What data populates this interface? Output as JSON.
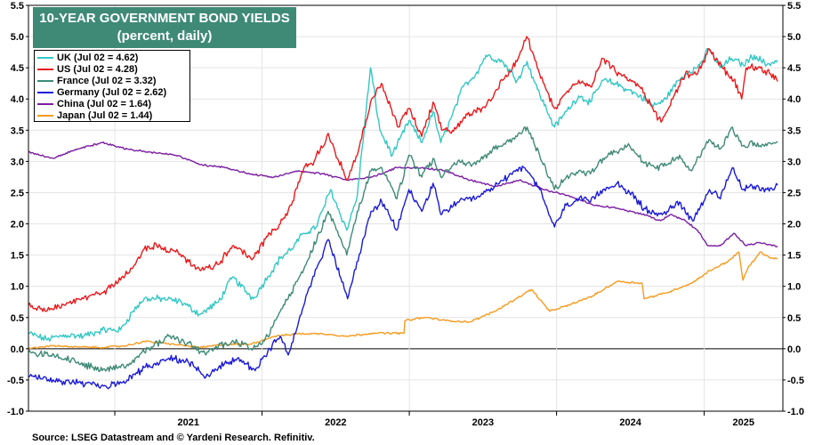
{
  "title_line1": "10-YEAR GOVERNMENT BOND YIELDS",
  "title_line2": "(percent, daily)",
  "source": "Source: LSEG Datastream and © Yardeni Research. Refinitiv.",
  "chart_data": {
    "type": "line",
    "title": "10-YEAR GOVERNMENT BOND YIELDS",
    "subtitle": "(percent, daily)",
    "xlabel": "",
    "ylabel": "",
    "ylim": [
      -1.0,
      5.5
    ],
    "yticks": [
      "5.5",
      "5.0",
      "4.5",
      "4.0",
      "3.5",
      "3.0",
      "2.5",
      "2.0",
      "1.5",
      "1.0",
      "0.5",
      "0.0",
      "-0.5",
      "-1.0"
    ],
    "x_ticks": [
      "2021",
      "2022",
      "2023",
      "2024",
      "2025"
    ],
    "x_range": [
      "2020-06-01",
      "2025-07-15"
    ],
    "grid": true,
    "legend": "top-left",
    "series": [
      {
        "name": "UK (Jul 02 = 4.62)",
        "color": "#33c7c4",
        "x": [
          "2020-06-01",
          "2020-07-15",
          "2020-09-01",
          "2020-10-15",
          "2020-12-01",
          "2021-01-15",
          "2021-02-15",
          "2021-03-15",
          "2021-05-01",
          "2021-06-15",
          "2021-08-01",
          "2021-09-15",
          "2021-10-20",
          "2021-12-10",
          "2022-01-15",
          "2022-02-15",
          "2022-03-15",
          "2022-04-15",
          "2022-05-15",
          "2022-06-20",
          "2022-07-30",
          "2022-08-25",
          "2022-09-27",
          "2022-10-20",
          "2022-11-20",
          "2022-12-31",
          "2023-02-01",
          "2023-03-01",
          "2023-03-20",
          "2023-04-15",
          "2023-05-15",
          "2023-06-15",
          "2023-07-10",
          "2023-08-20",
          "2023-09-25",
          "2023-10-20",
          "2023-11-15",
          "2023-12-27",
          "2024-01-25",
          "2024-02-25",
          "2024-03-25",
          "2024-04-25",
          "2024-05-25",
          "2024-06-25",
          "2024-07-25",
          "2024-08-25",
          "2024-09-20",
          "2024-10-30",
          "2024-11-25",
          "2024-12-15",
          "2025-01-13",
          "2025-02-10",
          "2025-03-10",
          "2025-04-07",
          "2025-05-05",
          "2025-06-05",
          "2025-07-02"
        ],
        "values": [
          0.25,
          0.15,
          0.22,
          0.2,
          0.3,
          0.3,
          0.6,
          0.8,
          0.8,
          0.75,
          0.55,
          0.75,
          1.15,
          0.8,
          1.15,
          1.45,
          1.6,
          1.85,
          1.95,
          2.55,
          1.9,
          2.45,
          4.5,
          3.5,
          3.1,
          3.65,
          3.3,
          3.8,
          3.3,
          3.7,
          4.2,
          4.4,
          4.7,
          4.6,
          4.3,
          4.6,
          4.15,
          3.55,
          3.8,
          4.05,
          3.95,
          4.3,
          4.25,
          4.15,
          4.05,
          3.9,
          3.95,
          4.3,
          4.45,
          4.5,
          4.8,
          4.5,
          4.65,
          4.55,
          4.7,
          4.55,
          4.62
        ]
      },
      {
        "name": "US (Jul 02 = 4.28)",
        "color": "#e8191b",
        "x": [
          "2020-06-01",
          "2020-07-15",
          "2020-09-01",
          "2020-10-15",
          "2020-12-01",
          "2021-01-15",
          "2021-02-15",
          "2021-03-15",
          "2021-04-15",
          "2021-06-01",
          "2021-08-01",
          "2021-09-15",
          "2021-10-20",
          "2021-12-10",
          "2022-01-15",
          "2022-02-15",
          "2022-03-15",
          "2022-04-15",
          "2022-05-10",
          "2022-06-14",
          "2022-07-30",
          "2022-08-25",
          "2022-09-27",
          "2022-10-24",
          "2022-12-05",
          "2022-12-31",
          "2023-02-01",
          "2023-03-01",
          "2023-03-25",
          "2023-04-15",
          "2023-05-25",
          "2023-06-30",
          "2023-07-25",
          "2023-08-20",
          "2023-09-25",
          "2023-10-19",
          "2023-11-20",
          "2023-12-27",
          "2024-01-25",
          "2024-02-25",
          "2024-03-25",
          "2024-04-25",
          "2024-05-25",
          "2024-06-25",
          "2024-07-25",
          "2024-09-16",
          "2024-10-15",
          "2024-11-15",
          "2024-12-15",
          "2025-01-14",
          "2025-02-15",
          "2025-03-15",
          "2025-04-04",
          "2025-04-15",
          "2025-05-20",
          "2025-06-15",
          "2025-07-02"
        ],
        "values": [
          0.7,
          0.6,
          0.7,
          0.8,
          0.9,
          1.1,
          1.3,
          1.6,
          1.65,
          1.55,
          1.25,
          1.35,
          1.65,
          1.45,
          1.8,
          2.0,
          2.3,
          2.9,
          3.0,
          3.45,
          2.7,
          3.1,
          3.95,
          4.25,
          3.55,
          3.85,
          3.4,
          3.95,
          3.5,
          3.45,
          3.75,
          3.85,
          4.0,
          4.3,
          4.6,
          5.0,
          4.4,
          3.85,
          4.1,
          4.3,
          4.2,
          4.65,
          4.45,
          4.3,
          4.2,
          3.63,
          4.0,
          4.4,
          4.4,
          4.8,
          4.5,
          4.3,
          4.0,
          4.5,
          4.5,
          4.4,
          4.28
        ]
      },
      {
        "name": "France (Jul 02 = 3.32)",
        "color": "#3f8a77",
        "x": [
          "2020-06-01",
          "2020-09-01",
          "2020-12-01",
          "2021-02-01",
          "2021-03-15",
          "2021-05-15",
          "2021-07-01",
          "2021-08-15",
          "2021-09-15",
          "2021-11-01",
          "2021-12-10",
          "2022-01-15",
          "2022-02-15",
          "2022-03-15",
          "2022-04-20",
          "2022-06-14",
          "2022-07-30",
          "2022-08-25",
          "2022-09-28",
          "2022-10-25",
          "2022-12-01",
          "2022-12-31",
          "2023-02-01",
          "2023-03-01",
          "2023-03-20",
          "2023-05-01",
          "2023-06-15",
          "2023-08-01",
          "2023-09-25",
          "2023-10-20",
          "2023-11-20",
          "2023-12-27",
          "2024-01-25",
          "2024-02-25",
          "2024-03-25",
          "2024-04-25",
          "2024-05-30",
          "2024-06-30",
          "2024-08-01",
          "2024-09-01",
          "2024-10-01",
          "2024-11-01",
          "2024-12-01",
          "2025-01-13",
          "2025-02-10",
          "2025-03-12",
          "2025-04-07",
          "2025-05-05",
          "2025-06-05",
          "2025-07-02"
        ],
        "values": [
          -0.05,
          -0.15,
          -0.35,
          -0.25,
          -0.05,
          0.2,
          0.1,
          -0.1,
          0.05,
          0.1,
          0.0,
          0.2,
          0.6,
          0.9,
          1.35,
          2.2,
          1.5,
          2.2,
          2.85,
          2.9,
          2.4,
          3.1,
          2.75,
          3.05,
          2.75,
          3.0,
          2.95,
          3.2,
          3.4,
          3.55,
          3.1,
          2.55,
          2.75,
          2.85,
          2.8,
          3.05,
          3.15,
          3.25,
          3.0,
          2.9,
          2.95,
          3.1,
          2.85,
          3.35,
          3.2,
          3.55,
          3.25,
          3.3,
          3.25,
          3.32
        ]
      },
      {
        "name": "Germany (Jul 02 = 2.62)",
        "color": "#1a1ad6",
        "x": [
          "2020-06-01",
          "2020-08-01",
          "2020-10-01",
          "2020-12-10",
          "2021-02-01",
          "2021-03-15",
          "2021-05-15",
          "2021-07-01",
          "2021-08-15",
          "2021-09-15",
          "2021-11-01",
          "2021-12-15",
          "2022-01-15",
          "2022-02-15",
          "2022-03-07",
          "2022-04-20",
          "2022-06-14",
          "2022-08-01",
          "2022-09-28",
          "2022-10-25",
          "2022-12-01",
          "2022-12-31",
          "2023-02-01",
          "2023-03-01",
          "2023-03-20",
          "2023-05-01",
          "2023-06-15",
          "2023-08-01",
          "2023-09-30",
          "2023-10-20",
          "2023-11-20",
          "2023-12-27",
          "2024-01-25",
          "2024-02-25",
          "2024-03-25",
          "2024-04-25",
          "2024-05-30",
          "2024-06-30",
          "2024-08-05",
          "2024-09-01",
          "2024-10-01",
          "2024-11-01",
          "2024-12-03",
          "2025-01-14",
          "2025-02-10",
          "2025-03-12",
          "2025-04-07",
          "2025-05-05",
          "2025-06-05",
          "2025-07-02"
        ],
        "values": [
          -0.45,
          -0.5,
          -0.55,
          -0.6,
          -0.5,
          -0.3,
          -0.15,
          -0.2,
          -0.45,
          -0.3,
          -0.15,
          -0.35,
          -0.05,
          0.2,
          -0.1,
          0.85,
          1.75,
          0.8,
          2.2,
          2.35,
          1.9,
          2.55,
          2.2,
          2.65,
          2.15,
          2.35,
          2.4,
          2.6,
          2.9,
          2.85,
          2.55,
          1.95,
          2.3,
          2.4,
          2.35,
          2.55,
          2.65,
          2.5,
          2.25,
          2.15,
          2.2,
          2.35,
          2.05,
          2.55,
          2.4,
          2.9,
          2.55,
          2.6,
          2.55,
          2.62
        ]
      },
      {
        "name": "China (Jul 02 = 1.64)",
        "color": "#7b1ea2",
        "x": [
          "2020-06-01",
          "2020-08-01",
          "2020-10-01",
          "2020-12-01",
          "2021-02-01",
          "2021-04-01",
          "2021-06-01",
          "2021-08-01",
          "2021-10-01",
          "2021-12-01",
          "2022-02-01",
          "2022-04-01",
          "2022-06-01",
          "2022-08-01",
          "2022-10-01",
          "2022-12-01",
          "2023-02-01",
          "2023-04-01",
          "2023-06-01",
          "2023-08-01",
          "2023-10-01",
          "2023-12-01",
          "2024-02-01",
          "2024-04-01",
          "2024-06-01",
          "2024-08-01",
          "2024-09-15",
          "2024-10-10",
          "2024-11-15",
          "2024-12-15",
          "2025-01-10",
          "2025-02-10",
          "2025-03-15",
          "2025-04-15",
          "2025-05-15",
          "2025-06-10",
          "2025-07-02"
        ],
        "values": [
          3.15,
          3.05,
          3.2,
          3.3,
          3.2,
          3.15,
          3.1,
          2.95,
          2.9,
          2.8,
          2.75,
          2.85,
          2.8,
          2.7,
          2.75,
          2.9,
          2.9,
          2.85,
          2.7,
          2.6,
          2.7,
          2.55,
          2.45,
          2.3,
          2.25,
          2.15,
          2.05,
          2.15,
          2.05,
          1.9,
          1.65,
          1.65,
          1.85,
          1.65,
          1.7,
          1.67,
          1.64
        ]
      },
      {
        "name": "Japan (Jul 02 = 1.44)",
        "color": "#f59b1f",
        "x": [
          "2020-06-01",
          "2020-08-01",
          "2020-10-01",
          "2020-12-01",
          "2021-02-01",
          "2021-03-15",
          "2021-05-15",
          "2021-08-01",
          "2021-10-01",
          "2021-12-01",
          "2022-02-01",
          "2022-04-01",
          "2022-06-01",
          "2022-08-01",
          "2022-10-01",
          "2022-12-19",
          "2022-12-21",
          "2023-01-15",
          "2023-02-15",
          "2023-04-01",
          "2023-06-01",
          "2023-08-01",
          "2023-10-31",
          "2023-12-15",
          "2024-02-01",
          "2024-04-01",
          "2024-05-30",
          "2024-07-31",
          "2024-08-05",
          "2024-10-01",
          "2024-12-01",
          "2025-01-15",
          "2025-03-01",
          "2025-03-28",
          "2025-04-07",
          "2025-04-20",
          "2025-05-21",
          "2025-06-15",
          "2025-07-02"
        ],
        "values": [
          0.0,
          0.05,
          0.03,
          0.02,
          0.05,
          0.12,
          0.08,
          0.02,
          0.07,
          0.07,
          0.2,
          0.24,
          0.24,
          0.2,
          0.25,
          0.25,
          0.45,
          0.48,
          0.5,
          0.45,
          0.43,
          0.6,
          0.95,
          0.6,
          0.7,
          0.85,
          1.08,
          1.05,
          0.8,
          0.9,
          1.05,
          1.25,
          1.4,
          1.55,
          1.1,
          1.3,
          1.55,
          1.45,
          1.44
        ]
      }
    ]
  }
}
